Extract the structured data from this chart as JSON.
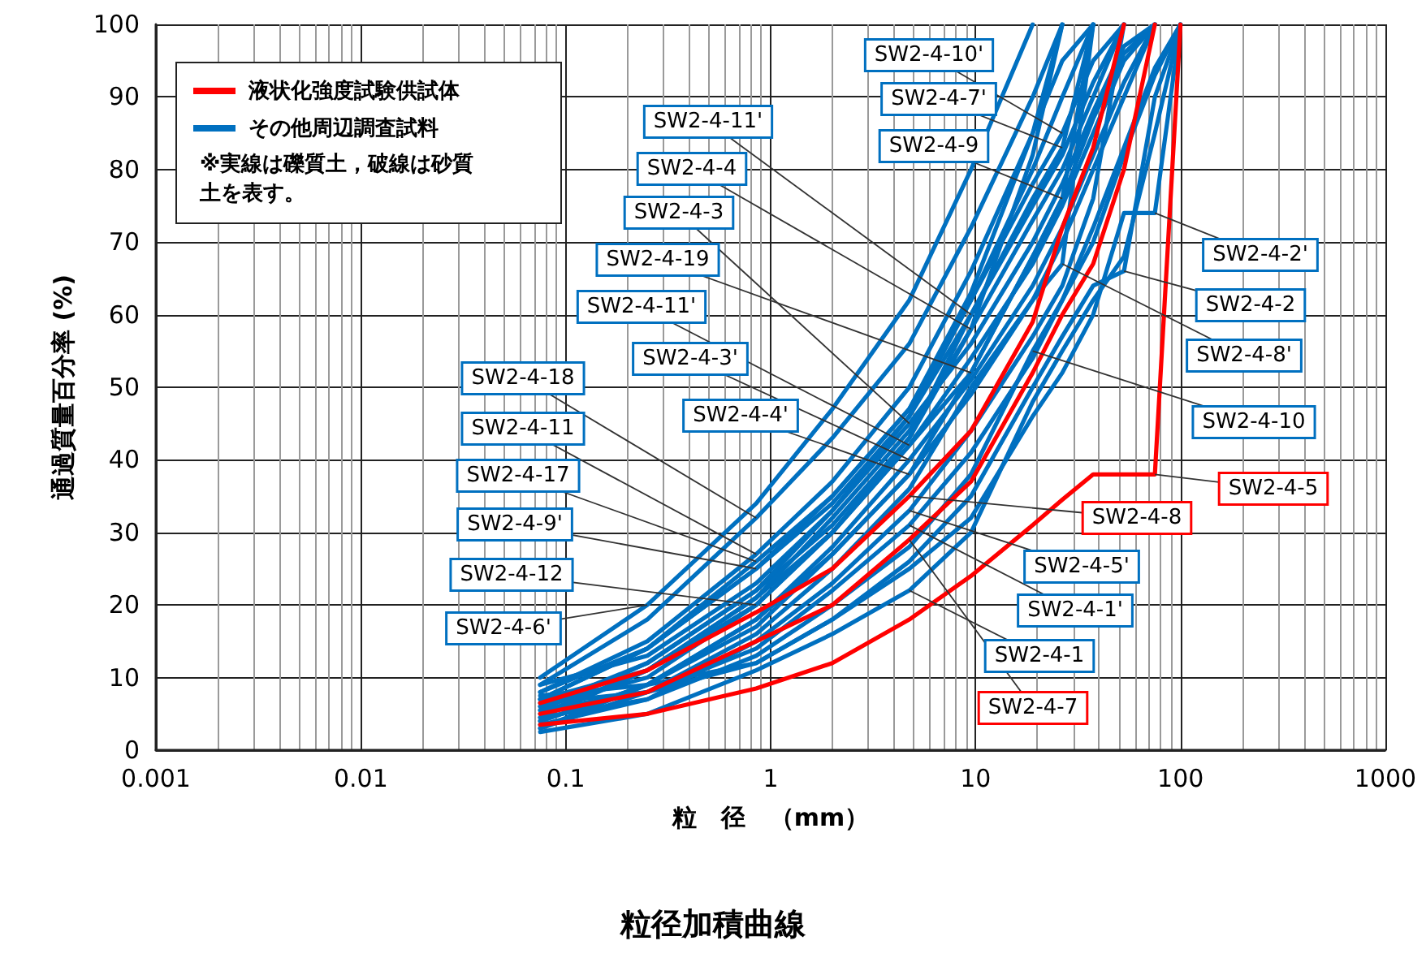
{
  "chart_data": {
    "type": "line",
    "title": "粒径加積曲線",
    "xlabel": "粒　径　（mm）",
    "ylabel": "通過質量百分率 (%)",
    "annotations": [
      "液状化強度試験供試体",
      "その他周辺調査試料",
      "※実線は礫質土，破線は砂質土を表す。"
    ],
    "log": "x",
    "grid": true,
    "xlim": [
      0.001,
      1000
    ],
    "xticks": [
      0.001,
      {
        "value": 0.002,
        "label": null
      },
      {
        "value": 0.003,
        "label": null
      },
      {
        "value": 0.004,
        "label": null
      },
      {
        "value": 0.005,
        "label": null
      },
      {
        "value": 0.006,
        "label": null
      },
      {
        "value": 0.007,
        "label": null
      },
      {
        "value": 0.008,
        "label": null
      },
      {
        "value": 0.009,
        "label": null
      },
      0.01,
      {
        "value": 0.02,
        "label": null
      },
      {
        "value": 0.03,
        "label": null
      },
      {
        "value": 0.04,
        "label": null
      },
      {
        "value": 0.05,
        "label": null
      },
      {
        "value": 0.06,
        "label": null
      },
      {
        "value": 0.07,
        "label": null
      },
      {
        "value": 0.08,
        "label": null
      },
      {
        "value": 0.09,
        "label": null
      },
      0.1,
      {
        "value": 0.2,
        "label": null
      },
      {
        "value": 0.3,
        "label": null
      },
      {
        "value": 0.4,
        "label": null
      },
      {
        "value": 0.5,
        "label": null
      },
      {
        "value": 0.6,
        "label": null
      },
      {
        "value": 0.7,
        "label": null
      },
      {
        "value": 0.8,
        "label": null
      },
      {
        "value": 0.9,
        "label": null
      },
      1,
      {
        "value": 2,
        "label": null
      },
      {
        "value": 3,
        "label": null
      },
      {
        "value": 4,
        "label": null
      },
      {
        "value": 5,
        "label": null
      },
      {
        "value": 6,
        "label": null
      },
      {
        "value": 7,
        "label": null
      },
      {
        "value": 8,
        "label": null
      },
      {
        "value": 9,
        "label": null
      },
      10,
      {
        "value": 20,
        "label": null
      },
      {
        "value": 30,
        "label": null
      },
      {
        "value": 40,
        "label": null
      },
      {
        "value": 50,
        "label": null
      },
      {
        "value": 60,
        "label": null
      },
      {
        "value": 70,
        "label": null
      },
      {
        "value": 80,
        "label": null
      },
      {
        "value": 90,
        "label": null
      },
      100,
      {
        "value": 200,
        "label": null
      },
      {
        "value": 300,
        "label": null
      },
      {
        "value": 400,
        "label": null
      },
      {
        "value": 500,
        "label": null
      },
      {
        "value": 600,
        "label": null
      },
      {
        "value": 700,
        "label": null
      },
      {
        "value": 800,
        "label": null
      },
      {
        "value": 900,
        "label": null
      },
      1000
    ],
    "ylim": [
      0,
      100
    ],
    "yticks": [
      0,
      10,
      20,
      30,
      40,
      50,
      60,
      70,
      80,
      90,
      100
    ],
    "x": [
      0.075,
      0.25,
      0.85,
      2,
      4.75,
      9.5,
      19,
      26.5,
      37.5,
      53,
      75,
      100
    ],
    "series": [
      {
        "name": "SW2-4-6'",
        "color": "#0070c0",
        "values": [
          10,
          20,
          34,
          47,
          62,
          80,
          100,
          null,
          null,
          null,
          null,
          null
        ]
      },
      {
        "name": "SW2-4-18",
        "color": "#0070c0",
        "values": [
          9,
          18,
          32,
          43,
          56,
          72,
          90,
          100,
          null,
          null,
          null,
          null
        ]
      },
      {
        "name": "SW2-4-11",
        "color": "#0070c0",
        "values": [
          8,
          15,
          27,
          37,
          50,
          66,
          85,
          95,
          100,
          null,
          null,
          null
        ]
      },
      {
        "name": "SW2-4-17",
        "color": "#0070c0",
        "values": [
          7,
          14,
          26,
          35,
          47,
          62,
          80,
          90,
          100,
          null,
          null,
          null
        ]
      },
      {
        "name": "SW2-4-9'",
        "color": "#0070c0",
        "values": [
          7,
          14,
          25,
          35,
          47,
          63,
          85,
          100,
          null,
          null,
          null,
          null
        ]
      },
      {
        "name": "SW2-4-10'",
        "color": "#0070c0",
        "values": [
          8,
          14,
          25,
          34,
          46,
          62,
          78,
          85,
          95,
          100,
          null,
          null
        ]
      },
      {
        "name": "SW2-4-7'",
        "color": "#0070c0",
        "values": [
          6,
          12,
          22,
          31,
          43,
          60,
          76,
          83,
          100,
          null,
          null,
          null
        ]
      },
      {
        "name": "SW2-4-11'",
        "color": "#0070c0",
        "values": [
          5.5,
          12,
          22,
          33,
          46,
          60,
          75,
          82,
          92,
          100,
          null,
          null
        ]
      },
      {
        "name": "SW2-4-4",
        "color": "#0070c0",
        "values": [
          4.5,
          11,
          21,
          32,
          44,
          58,
          73,
          80,
          90,
          100,
          null,
          null
        ]
      },
      {
        "name": "SW2-4-19",
        "color": "#0070c0",
        "values": [
          7,
          11,
          21,
          30,
          42,
          52,
          68,
          76,
          87,
          96,
          100,
          null
        ]
      },
      {
        "name": "SW2-4-3",
        "color": "#0070c0",
        "values": [
          9,
          13,
          23,
          33,
          45,
          56,
          70,
          78,
          88,
          97,
          100,
          null
        ]
      },
      {
        "name": "SW2-4-11'",
        "color": "#0070c0",
        "values": [
          6,
          10,
          20,
          30,
          42,
          54,
          67,
          75,
          85,
          95,
          100,
          null
        ]
      },
      {
        "name": "SW2-4-12",
        "color": "#0070c0",
        "values": [
          5,
          11,
          20,
          30,
          43,
          58,
          82,
          100,
          null,
          null,
          null,
          null
        ]
      },
      {
        "name": "SW2-4-3'",
        "color": "#0070c0",
        "values": [
          4,
          9,
          18,
          28,
          40,
          51,
          64,
          72,
          82,
          92,
          100,
          null
        ]
      },
      {
        "name": "SW2-4-4'",
        "color": "#0070c0",
        "values": [
          3,
          9,
          17,
          27,
          38,
          49,
          62,
          70,
          80,
          90,
          100,
          null
        ]
      },
      {
        "name": "SW2-4-9",
        "color": "#0070c0",
        "values": [
          4,
          9,
          18,
          27,
          38,
          52,
          68,
          76,
          100,
          null,
          null,
          null
        ]
      },
      {
        "name": "SW2-4-8'",
        "color": "#0070c0",
        "values": [
          3,
          8,
          16,
          25,
          36,
          50,
          62,
          67,
          100,
          null,
          null,
          null
        ]
      },
      {
        "name": "SW2-4-5'",
        "color": "#0070c0",
        "values": [
          3.5,
          7,
          15,
          23,
          33,
          44,
          57,
          64,
          76,
          100,
          null,
          null
        ]
      },
      {
        "name": "SW2-4-1'",
        "color": "#0070c0",
        "values": [
          5.5,
          8,
          14,
          22,
          31,
          41,
          54,
          62,
          72,
          83,
          94,
          100
        ]
      },
      {
        "name": "SW2-4-10",
        "color": "#0070c0",
        "values": [
          4.5,
          7,
          13,
          20,
          28,
          38,
          55,
          62,
          70,
          82,
          93,
          100
        ]
      },
      {
        "name": "SW2-4-2",
        "color": "#0070c0",
        "values": [
          6.5,
          8,
          12,
          18,
          26,
          35,
          50,
          57,
          64,
          66,
          90,
          100
        ]
      },
      {
        "name": "SW2-4-1",
        "color": "#0070c0",
        "values": [
          2.5,
          5,
          11,
          16,
          22,
          30,
          48,
          55,
          62,
          68,
          85,
          100
        ]
      },
      {
        "name": "SW2-4-2'",
        "color": "#0070c0",
        "values": [
          7.5,
          9,
          12,
          18,
          25,
          32,
          46,
          52,
          60,
          74,
          74,
          100
        ]
      },
      {
        "name": "SW2-4-5",
        "color": "#ff0000",
        "values": [
          3.5,
          5,
          8.5,
          12,
          18,
          24,
          31,
          34.5,
          38,
          38,
          38,
          100
        ]
      },
      {
        "name": "SW2-4-7",
        "color": "#ff0000",
        "values": [
          5,
          8,
          15,
          20,
          29,
          37,
          52,
          60,
          67,
          80,
          100,
          null
        ]
      },
      {
        "name": "SW2-4-8",
        "color": "#ff0000",
        "values": [
          6.5,
          11,
          19,
          25,
          35,
          44,
          59,
          72,
          83,
          100,
          null,
          null
        ]
      }
    ]
  }
}
